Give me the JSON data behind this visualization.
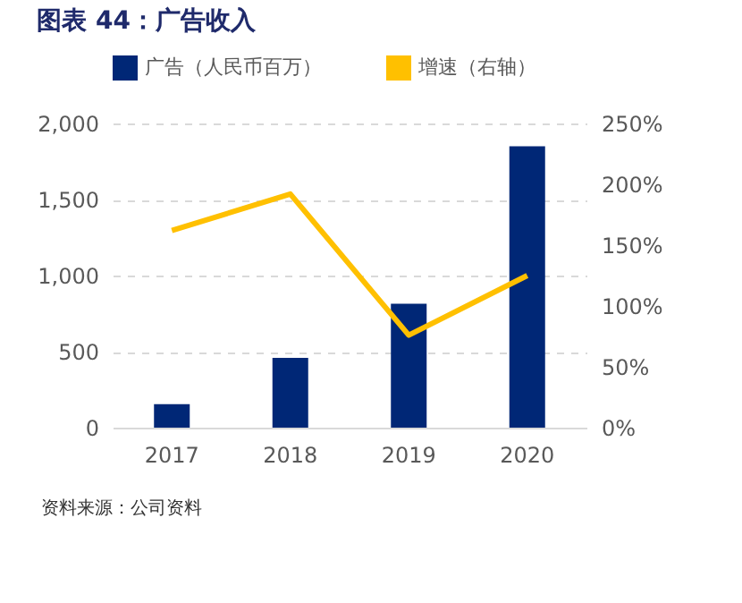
{
  "chart_data": {
    "type": "bar",
    "title": "图表 44：广告收入",
    "categories": [
      "2017",
      "2018",
      "2019",
      "2020"
    ],
    "series": [
      {
        "name": "广告（人民币百万）",
        "color": "#002776",
        "values": [
          154,
          459,
          814,
          1850
        ]
      },
      {
        "name": "增速（右轴）",
        "type": "line",
        "axis": "y2",
        "color": "#ffc000",
        "values": [
          162,
          192,
          76,
          125
        ]
      }
    ],
    "ylim": [
      0,
      2000
    ],
    "yticks": [
      0,
      {
        "value": 500,
        "label": "500"
      },
      {
        "value": 1000,
        "label": "1,000"
      },
      {
        "value": 1500,
        "label": "1,500"
      },
      {
        "value": 2000,
        "label": "2,000"
      }
    ],
    "y2lim": [
      0,
      250
    ],
    "y2ticks": [
      {
        "value": 0,
        "label": "0%"
      },
      {
        "value": 50,
        "label": "50%"
      },
      {
        "value": 100,
        "label": "100%"
      },
      {
        "value": 150,
        "label": "150%"
      },
      {
        "value": 200,
        "label": "200%"
      },
      {
        "value": 250,
        "label": "250%"
      }
    ],
    "grid": "y",
    "legend": "top",
    "annotations": [
      "资料来源：公司资料"
    ]
  }
}
